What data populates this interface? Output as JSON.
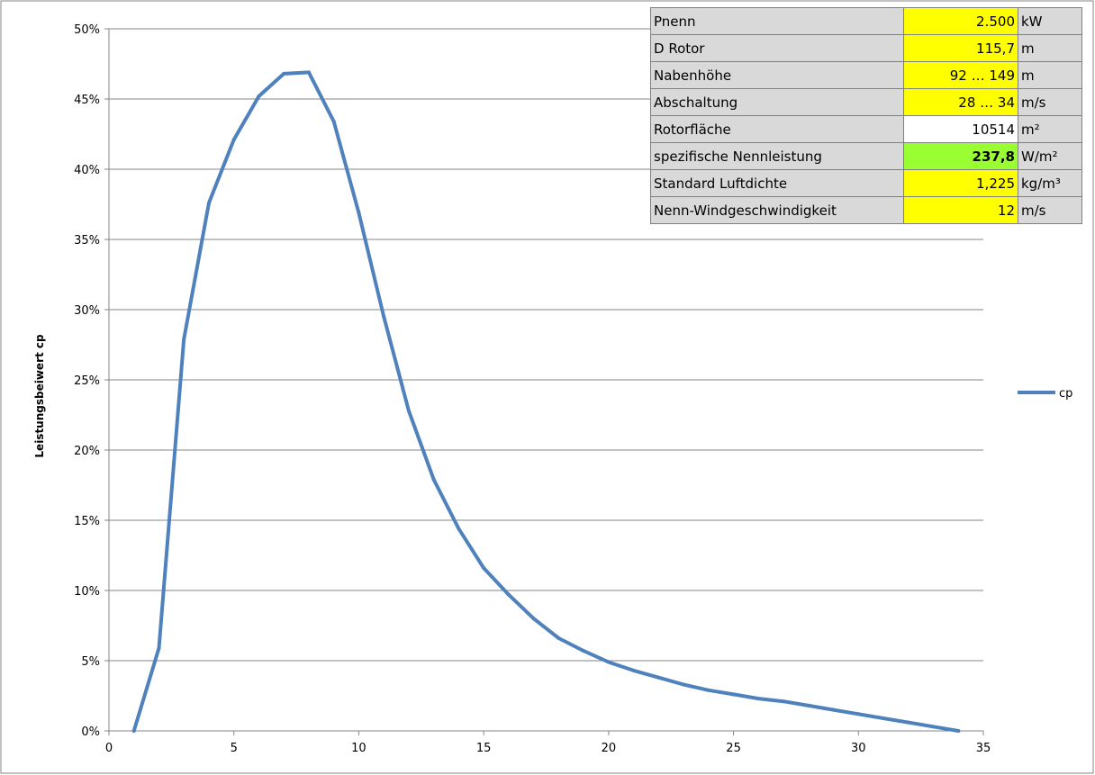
{
  "chart_data": {
    "type": "line",
    "ylabel": "Leistungsbeiwert cp",
    "xlabel": "",
    "xlim": [
      0,
      35
    ],
    "ylim": [
      0,
      0.5
    ],
    "x_ticks": [
      "0",
      "5",
      "10",
      "15",
      "20",
      "25",
      "30",
      "35"
    ],
    "y_ticks": [
      "0%",
      "5%",
      "10%",
      "15%",
      "20%",
      "25%",
      "30%",
      "35%",
      "40%",
      "45%",
      "50%"
    ],
    "grid": "horizontal",
    "legend_position": "right",
    "series": [
      {
        "name": "cp",
        "color": "#4f81bd",
        "x": [
          1,
          2,
          3,
          4,
          5,
          6,
          7,
          8,
          9,
          10,
          11,
          12,
          13,
          14,
          15,
          16,
          17,
          18,
          19,
          20,
          21,
          22,
          23,
          24,
          25,
          26,
          27,
          28,
          29,
          30,
          31,
          32,
          33,
          34
        ],
        "y": [
          0.0,
          0.059,
          0.279,
          0.376,
          0.421,
          0.452,
          0.468,
          0.469,
          0.434,
          0.369,
          0.295,
          0.228,
          0.179,
          0.144,
          0.116,
          0.097,
          0.08,
          0.066,
          0.057,
          0.049,
          0.043,
          0.038,
          0.033,
          0.029,
          0.026,
          0.023,
          0.021,
          0.018,
          0.015,
          0.012,
          0.009,
          0.006,
          0.003,
          0.0
        ]
      }
    ]
  },
  "spec_table": {
    "rows": [
      {
        "label": "Pnenn",
        "value": "2.500",
        "unit": "kW",
        "style": "yellow"
      },
      {
        "label": "D Rotor",
        "value": "115,7",
        "unit": "m",
        "style": "yellow"
      },
      {
        "label": "Nabenhöhe",
        "value": "92 … 149",
        "unit": "m",
        "style": "yellow"
      },
      {
        "label": "Abschaltung",
        "value": "28 … 34",
        "unit": "m/s",
        "style": "yellow"
      },
      {
        "label": "Rotorfläche",
        "value": "10514",
        "unit": "m²",
        "style": "white"
      },
      {
        "label": "spezifische Nennleistung",
        "value": "237,8",
        "unit": "W/m²",
        "style": "green"
      },
      {
        "label": "Standard Luftdichte",
        "value": "1,225",
        "unit": "kg/m³",
        "style": "yellow"
      },
      {
        "label": "Nenn-Windgeschwindigkeit",
        "value": "12",
        "unit": "m/s",
        "style": "yellow"
      }
    ]
  }
}
